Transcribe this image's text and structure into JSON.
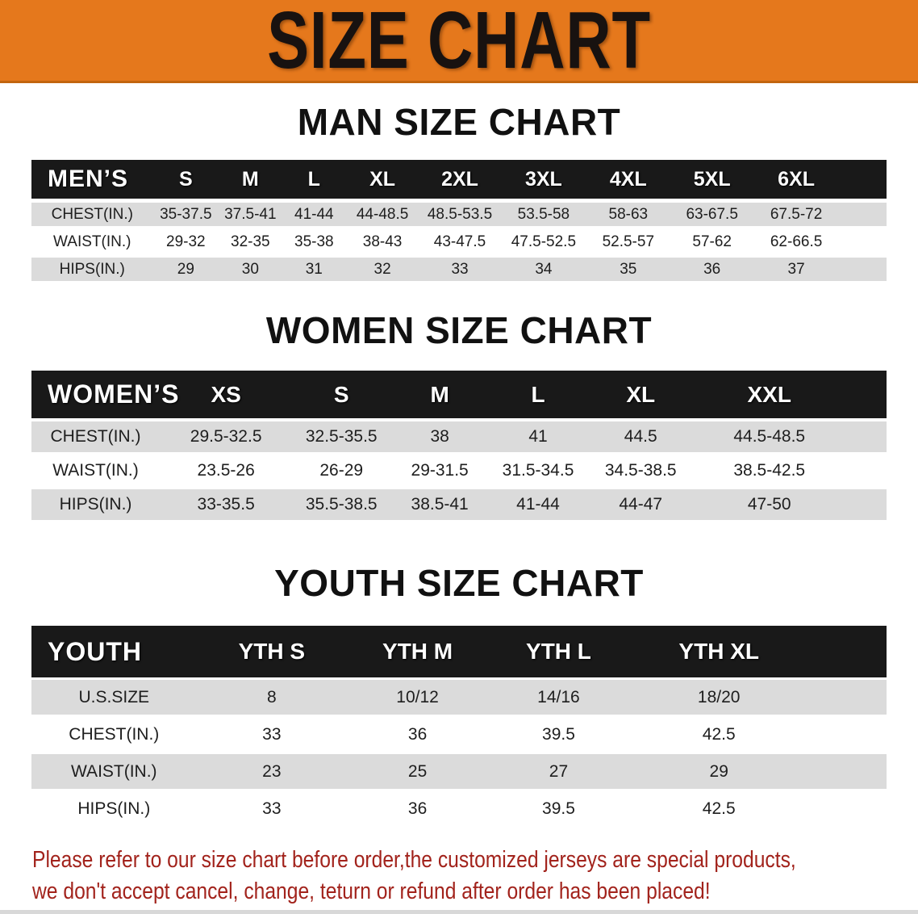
{
  "banner": {
    "title": "SIZE CHART"
  },
  "sections": {
    "men": {
      "heading": "MAN SIZE CHART",
      "table": {
        "corner": "MEN’S",
        "columns": [
          "S",
          "M",
          "L",
          "XL",
          "2XL",
          "3XL",
          "4XL",
          "5XL",
          "6XL"
        ],
        "rows": [
          {
            "label": "CHEST(IN.)",
            "values": [
              "35-37.5",
              "37.5-41",
              "41-44",
              "44-48.5",
              "48.5-53.5",
              "53.5-58",
              "58-63",
              "63-67.5",
              "67.5-72"
            ]
          },
          {
            "label": "WAIST(IN.)",
            "values": [
              "29-32",
              "32-35",
              "35-38",
              "38-43",
              "43-47.5",
              "47.5-52.5",
              "52.5-57",
              "57-62",
              "62-66.5"
            ]
          },
          {
            "label": "HIPS(IN.)",
            "values": [
              "29",
              "30",
              "31",
              "32",
              "33",
              "34",
              "35",
              "36",
              "37"
            ]
          }
        ]
      }
    },
    "women": {
      "heading": "WOMEN SIZE CHART",
      "table": {
        "corner": "WOMEN’S",
        "columns": [
          "XS",
          "S",
          "M",
          "L",
          "XL",
          "XXL"
        ],
        "rows": [
          {
            "label": "CHEST(IN.)",
            "values": [
              "29.5-32.5",
              "32.5-35.5",
              "38",
              "41",
              "44.5",
              "44.5-48.5"
            ]
          },
          {
            "label": "WAIST(IN.)",
            "values": [
              "23.5-26",
              "26-29",
              "29-31.5",
              "31.5-34.5",
              "34.5-38.5",
              "38.5-42.5"
            ]
          },
          {
            "label": "HIPS(IN.)",
            "values": [
              "33-35.5",
              "35.5-38.5",
              "38.5-41",
              "41-44",
              "44-47",
              "47-50"
            ]
          }
        ]
      }
    },
    "youth": {
      "heading": "YOUTH SIZE CHART",
      "table": {
        "corner": "YOUTH",
        "columns": [
          "YTH S",
          "YTH M",
          "YTH L",
          "YTH XL"
        ],
        "rows": [
          {
            "label": "U.S.SIZE",
            "values": [
              "8",
              "10/12",
              "14/16",
              "18/20"
            ]
          },
          {
            "label": "CHEST(IN.)",
            "values": [
              "33",
              "36",
              "39.5",
              "42.5"
            ]
          },
          {
            "label": "WAIST(IN.)",
            "values": [
              "23",
              "25",
              "27",
              "29"
            ]
          },
          {
            "label": "HIPS(IN.)",
            "values": [
              "33",
              "36",
              "39.5",
              "42.5"
            ]
          }
        ]
      }
    }
  },
  "disclaimer": {
    "line1": "Please refer to our size chart before order,the customized jerseys are special products,",
    "line2": "we don't accept cancel, change, teturn or refund after order has been placed!"
  },
  "colors": {
    "banner_bg": "#e5781c",
    "banner_title": "#181210",
    "header_bar": "#191919",
    "header_text": "#ffffff",
    "row_stripe": "#dbdbdb",
    "body_text": "#1e1e1e",
    "heading_text": "#111111",
    "disclaimer_red": "#a2231c"
  }
}
